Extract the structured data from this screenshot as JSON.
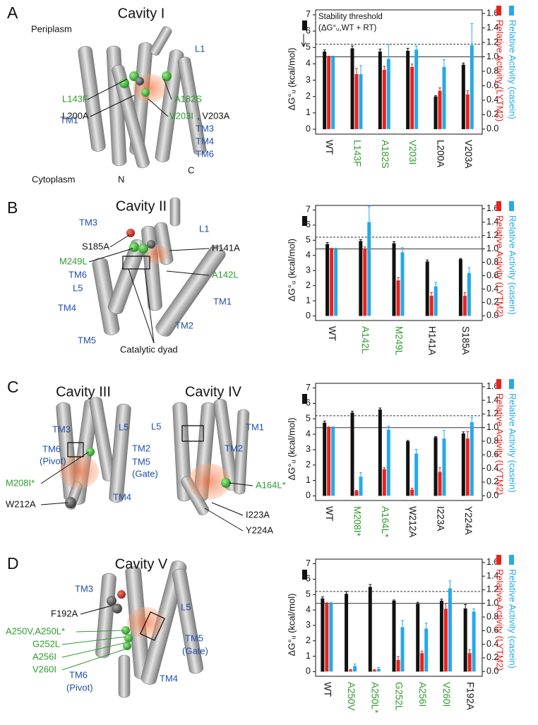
{
  "panels": [
    {
      "letter": "A",
      "titles": [
        "Cavity I"
      ],
      "labels": [
        "Periplasm",
        "L1",
        "L143F",
        "A182S",
        "L200A",
        "V203I",
        ", V203A",
        "TM1",
        "TM3",
        "TM4",
        "TM6",
        "N",
        "C",
        "Cytoplasm"
      ]
    },
    {
      "letter": "B",
      "titles": [
        "Cavity II"
      ],
      "labels": [
        "TM3",
        "L1",
        "S185A",
        "H141A",
        "M249L",
        "A142L",
        "TM6",
        "L5",
        "TM4",
        "TM1",
        "TM2",
        "TM5",
        "Catalytic dyad"
      ]
    },
    {
      "letter": "C",
      "titles": [
        "Cavity III",
        "Cavity IV"
      ],
      "labels": [
        "TM3",
        "L5",
        "TM6",
        "(Pivot)",
        "TM2",
        "TM5",
        "(Gate)",
        "M208I*",
        "W212A",
        "TM4",
        "L5",
        "TM1",
        "TM2",
        "A164L*",
        "I223A",
        "Y224A"
      ]
    },
    {
      "letter": "D",
      "titles": [
        "Cavity V"
      ],
      "labels": [
        "TM3",
        "F192A",
        "L5",
        "A250V,A250L*",
        "G252L",
        "A256I",
        "V260I",
        "TM5",
        "(Gate)",
        "TM6",
        "(Pivot)",
        "TM4"
      ]
    }
  ],
  "chart_data": [
    {
      "type": "bar",
      "ylabel": "ΔG°ᵤ (kcal/mol)",
      "annotations": [
        "Stability threshold",
        "(ΔG°ᵤ,WT + RT)"
      ],
      "categories": [
        "WT",
        "L143F",
        "A182S",
        "V203I",
        "L200A",
        "V203A"
      ],
      "category_colors": [
        "#111111",
        "#2e9b2e",
        "#2e9b2e",
        "#2e9b2e",
        "#111111",
        "#111111"
      ],
      "series": [
        {
          "color": "#111111",
          "values": [
            4.75,
            4.95,
            4.75,
            4.8,
            2.0,
            3.95
          ],
          "errors": [
            0.1,
            0.15,
            0.15,
            0.15,
            0.05,
            0.1
          ]
        },
        {
          "name": "Relative Activity (LYTM2)",
          "color": "#e8221e",
          "axis": "y2",
          "values": [
            1.0,
            0.76,
            0.82,
            0.86,
            0.53,
            0.48
          ],
          "errors": [
            0.01,
            0.08,
            0.05,
            0.04,
            0.04,
            0.05
          ]
        },
        {
          "name": "Relative Activity (casein)",
          "color": "#25a9e8",
          "axis": "y2",
          "values": [
            1.0,
            0.76,
            0.97,
            1.1,
            0.86,
            1.16
          ],
          "errors": [
            0.01,
            0.12,
            0.2,
            0.05,
            0.1,
            0.3
          ]
        }
      ],
      "ylim": [
        -0.3,
        7.3
      ],
      "yticks": [
        0,
        1,
        2,
        3,
        4,
        5,
        6,
        7
      ],
      "y2lim": [
        -0.07,
        1.65
      ],
      "y2ticks": [
        {
          "value": 0,
          "label": "0.0"
        },
        0.2,
        0.4,
        0.6,
        0.8,
        {
          "value": 1,
          "label": "1.0"
        },
        1.2,
        1.4,
        1.6
      ],
      "hlines": [
        {
          "value": 5.2,
          "style": "dashed"
        },
        {
          "value": 1,
          "axis": "y2",
          "style": "solid"
        }
      ]
    },
    {
      "type": "bar",
      "ylabel": "ΔG°ᵤ (kcal/mol)",
      "categories": [
        "WT",
        "A142L",
        "M249L",
        "H141A",
        "S185A"
      ],
      "category_colors": [
        "#111111",
        "#2e9b2e",
        "#2e9b2e",
        "#111111",
        "#111111"
      ],
      "series": [
        {
          "color": "#111111",
          "values": [
            4.75,
            4.95,
            4.8,
            3.6,
            3.75
          ],
          "errors": [
            0.1,
            0.1,
            0.1,
            0.1,
            0.05
          ]
        },
        {
          "name": "Relative Activity (LYTM2)",
          "color": "#e8221e",
          "axis": "y2",
          "values": [
            1.0,
            1.0,
            0.53,
            0.3,
            0.3
          ],
          "errors": [
            0.01,
            0.03,
            0.04,
            0.05,
            0.05
          ]
        },
        {
          "name": "Relative Activity (casein)",
          "color": "#25a9e8",
          "axis": "y2",
          "values": [
            1.0,
            1.4,
            0.95,
            0.44,
            0.64
          ],
          "errors": [
            0.01,
            0.23,
            0.07,
            0.06,
            0.08
          ]
        }
      ],
      "ylim": [
        -0.3,
        7.3
      ],
      "yticks": [
        0,
        1,
        2,
        3,
        4,
        5,
        6,
        7
      ],
      "y2lim": [
        -0.07,
        1.65
      ],
      "y2ticks": [
        {
          "value": 0,
          "label": "0.0"
        },
        0.2,
        0.4,
        0.6,
        0.8,
        {
          "value": 1,
          "label": "1.0"
        },
        1.2,
        1.4,
        1.6
      ],
      "hlines": [
        {
          "value": 5.2,
          "style": "dashed"
        },
        {
          "value": 1,
          "axis": "y2",
          "style": "solid"
        }
      ]
    },
    {
      "type": "bar",
      "ylabel": "ΔG°ᵤ (kcal/mol)",
      "categories": [
        "WT",
        "M208I*",
        "A164L*",
        "W212A",
        "I223A",
        "Y224A"
      ],
      "category_colors": [
        "#111111",
        "#2e9b2e",
        "#2e9b2e",
        "#111111",
        "#111111",
        "#111111"
      ],
      "series": [
        {
          "color": "#111111",
          "values": [
            4.75,
            5.4,
            5.6,
            3.55,
            3.8,
            4.05
          ],
          "errors": [
            0.1,
            0.1,
            0.1,
            0.05,
            0.05,
            0.1
          ]
        },
        {
          "name": "Relative Activity (LYTM2)",
          "color": "#e8221e",
          "axis": "y2",
          "values": [
            1.0,
            0.07,
            0.39,
            0.09,
            0.35,
            0.84
          ],
          "errors": [
            0.01,
            0.01,
            0.02,
            0.02,
            0.06,
            0.1
          ]
        },
        {
          "name": "Relative Activity (casein)",
          "color": "#25a9e8",
          "axis": "y2",
          "values": [
            1.0,
            0.28,
            0.97,
            0.62,
            0.84,
            1.08
          ],
          "errors": [
            0.01,
            0.06,
            0.05,
            0.06,
            0.12,
            0.07
          ]
        }
      ],
      "ylim": [
        -0.3,
        7.3
      ],
      "yticks": [
        0,
        1,
        2,
        3,
        4,
        5,
        6,
        7
      ],
      "y2lim": [
        -0.07,
        1.65
      ],
      "y2ticks": [
        {
          "value": 0,
          "label": "0.0"
        },
        0.2,
        0.4,
        0.6,
        0.8,
        {
          "value": 1,
          "label": "1.0"
        },
        1.2,
        1.4,
        1.6
      ],
      "hlines": [
        {
          "value": 5.2,
          "style": "dashed"
        },
        {
          "value": 1,
          "axis": "y2",
          "style": "solid"
        }
      ]
    },
    {
      "type": "bar",
      "ylabel": "ΔG°ᵤ (kcal/mol)",
      "categories": [
        "WT",
        "A250V",
        "A250L*",
        "G252L",
        "A256I",
        "V260I",
        "F192A"
      ],
      "category_colors": [
        "#111111",
        "#2e9b2e",
        "#2e9b2e",
        "#2e9b2e",
        "#2e9b2e",
        "#2e9b2e",
        "#111111"
      ],
      "series": [
        {
          "color": "#111111",
          "values": [
            4.75,
            5.05,
            5.5,
            4.6,
            4.4,
            4.6,
            4.1
          ],
          "errors": [
            0.1,
            0.15,
            0.15,
            0.05,
            0.1,
            0.1,
            0.25
          ]
        },
        {
          "name": "Relative Activity (LYTM2)",
          "color": "#e8221e",
          "axis": "y2",
          "values": [
            1.0,
            0.02,
            0.02,
            0.17,
            0.27,
            0.92,
            0.27
          ],
          "errors": [
            0.01,
            0.01,
            0.01,
            0.05,
            0.03,
            0.08,
            0.05
          ]
        },
        {
          "name": "Relative Activity (casein)",
          "color": "#25a9e8",
          "axis": "y2",
          "values": [
            1.0,
            0.08,
            0.04,
            0.65,
            0.63,
            1.22,
            0.88
          ],
          "errors": [
            0.01,
            0.03,
            0.02,
            0.1,
            0.08,
            0.11,
            0.04
          ]
        }
      ],
      "ylim": [
        -0.3,
        7.3
      ],
      "yticks": [
        0,
        1,
        2,
        3,
        4,
        5,
        6,
        7
      ],
      "y2lim": [
        -0.07,
        1.65
      ],
      "y2ticks": [
        {
          "value": 0,
          "label": "0.0"
        },
        0.2,
        0.4,
        0.6,
        0.8,
        {
          "value": 1,
          "label": "1.0"
        },
        1.2,
        1.4,
        1.6
      ],
      "hlines": [
        {
          "value": 5.2,
          "style": "dashed"
        },
        {
          "value": 1,
          "axis": "y2",
          "style": "solid"
        }
      ]
    }
  ]
}
